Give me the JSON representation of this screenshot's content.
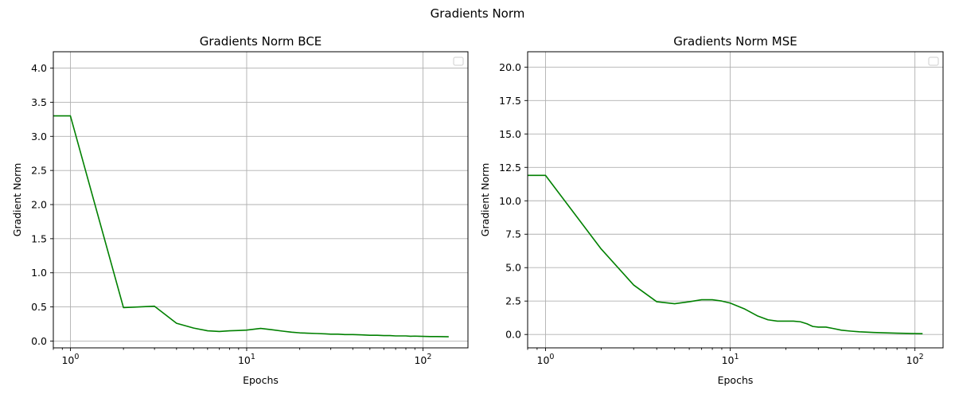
{
  "figure": {
    "suptitle": "Gradients Norm"
  },
  "chart_data": [
    {
      "type": "line",
      "title": "Gradients Norm BCE",
      "xlabel": "Epochs",
      "ylabel": "Gradient Norm",
      "xscale": "log",
      "xlim": [
        0.8,
        180
      ],
      "ylim": [
        -0.1,
        4.24
      ],
      "yticks": [
        "0.0",
        "0.5",
        "1.0",
        "1.5",
        "2.0",
        "2.5",
        "3.0",
        "3.5",
        "4.0"
      ],
      "xticks": [
        {
          "value": 1,
          "label": "10^0"
        },
        {
          "value": 10,
          "label": "10^1"
        },
        {
          "value": 100,
          "label": "10^2"
        }
      ],
      "grid": true,
      "legend": "top-right",
      "color": "#008000",
      "series": [
        {
          "x": [
            0,
            1,
            2,
            3,
            4,
            5,
            6,
            7,
            8,
            9,
            10,
            12,
            14,
            16,
            18,
            20,
            22,
            25,
            28,
            30,
            33,
            36,
            40,
            45,
            50,
            55,
            60,
            65,
            70,
            75,
            80,
            85,
            90,
            95,
            100,
            110,
            120,
            130,
            140
          ],
          "y": [
            3.3,
            3.3,
            0.49,
            0.51,
            0.26,
            0.19,
            0.15,
            0.14,
            0.15,
            0.155,
            0.16,
            0.185,
            0.165,
            0.145,
            0.13,
            0.12,
            0.115,
            0.11,
            0.105,
            0.1,
            0.1,
            0.095,
            0.095,
            0.09,
            0.085,
            0.085,
            0.08,
            0.08,
            0.075,
            0.075,
            0.075,
            0.07,
            0.072,
            0.07,
            0.068,
            0.066,
            0.065,
            0.064,
            0.063
          ]
        }
      ]
    },
    {
      "type": "line",
      "title": "Gradients Norm MSE",
      "xlabel": "Epochs",
      "ylabel": "Gradient Norm",
      "xscale": "log",
      "xlim": [
        0.8,
        142
      ],
      "ylim": [
        -1.0,
        21.15
      ],
      "yticks": [
        "0.0",
        "2.5",
        "5.0",
        "7.5",
        "10.0",
        "12.5",
        "15.0",
        "17.5",
        "20.0"
      ],
      "xticks": [
        {
          "value": 1,
          "label": "10^0"
        },
        {
          "value": 10,
          "label": "10^1"
        },
        {
          "value": 100,
          "label": "10^2"
        }
      ],
      "grid": true,
      "legend": "top-right",
      "color": "#008000",
      "series": [
        {
          "x": [
            0,
            1,
            2,
            3,
            4,
            5,
            6,
            7,
            8,
            9,
            10,
            12,
            14,
            16,
            18,
            20,
            22,
            24,
            26,
            28,
            30,
            33,
            36,
            40,
            45,
            50,
            60,
            70,
            80,
            90,
            100,
            110
          ],
          "y": [
            11.9,
            11.9,
            6.4,
            3.7,
            2.45,
            2.3,
            2.45,
            2.6,
            2.6,
            2.5,
            2.35,
            1.9,
            1.4,
            1.1,
            1.0,
            1.0,
            1.0,
            0.95,
            0.8,
            0.6,
            0.55,
            0.55,
            0.45,
            0.32,
            0.25,
            0.2,
            0.15,
            0.12,
            0.1,
            0.08,
            0.07,
            0.06
          ]
        }
      ]
    }
  ]
}
